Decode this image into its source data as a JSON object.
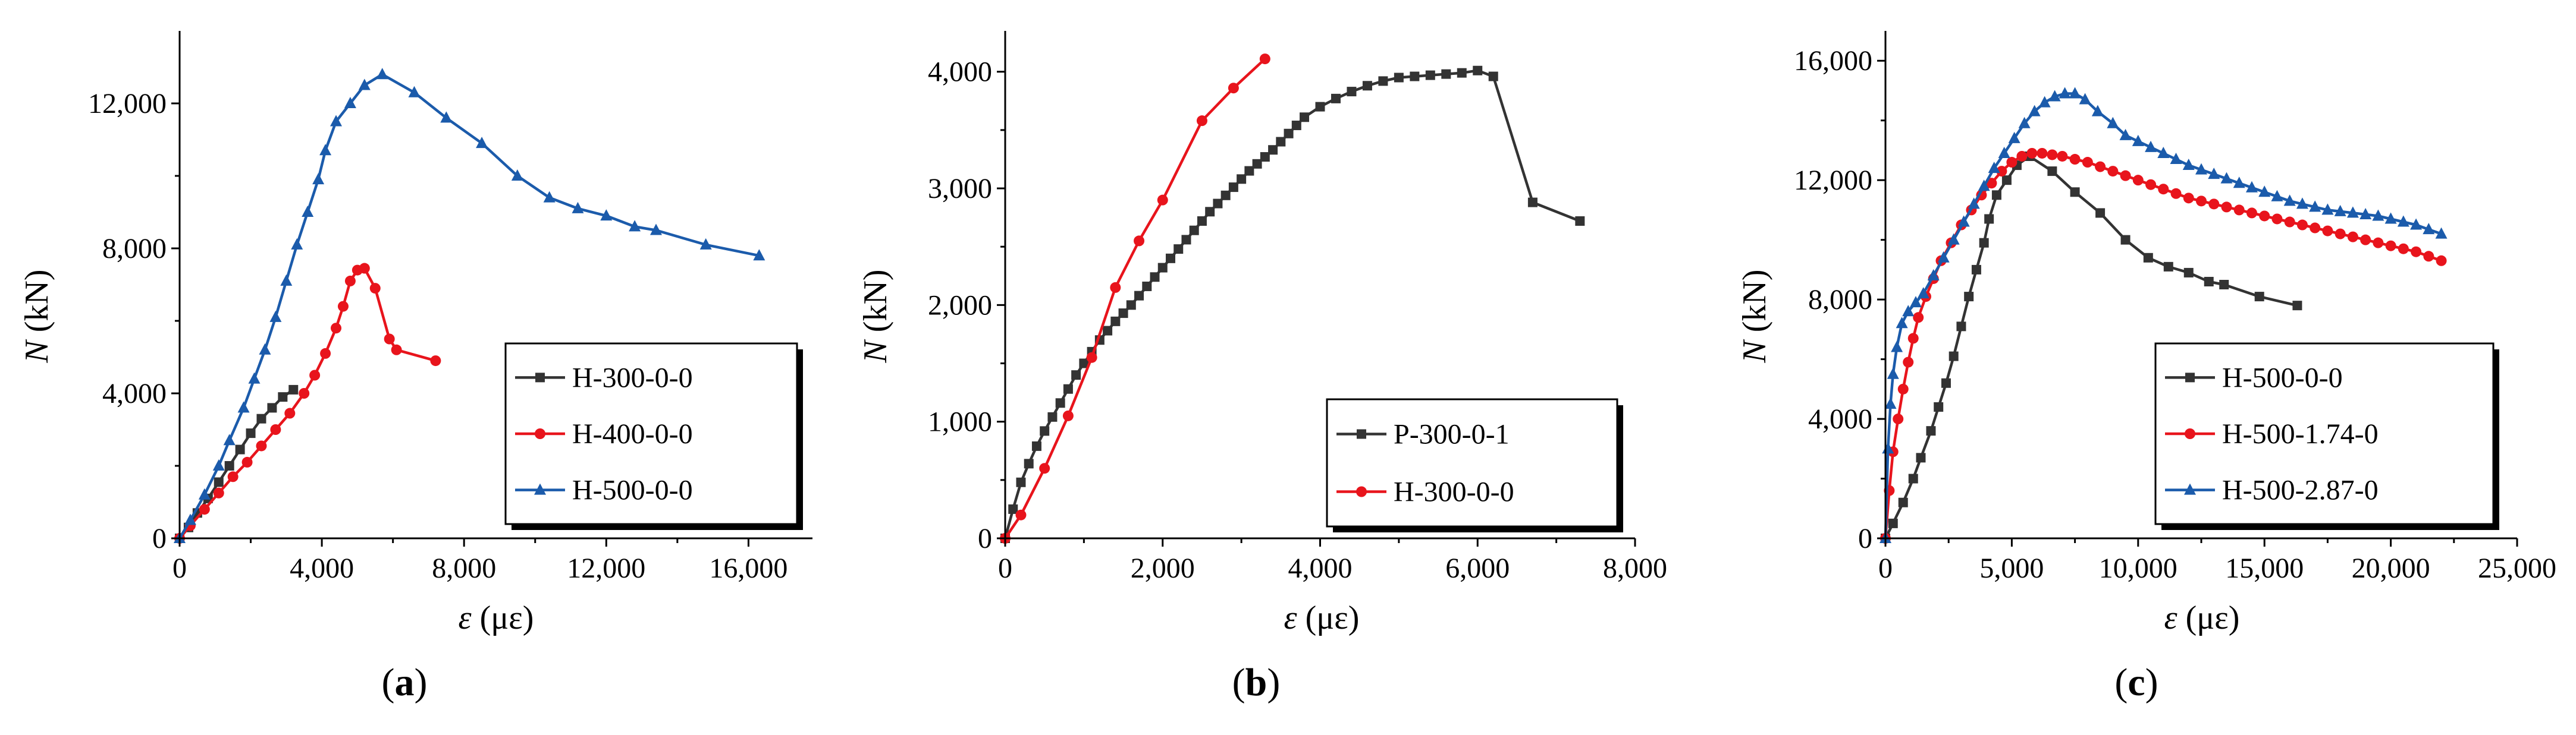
{
  "chart_data": [
    {
      "type": "line",
      "panel_label": "a",
      "xlabel": "ε (με)",
      "ylabel": "N (kN)",
      "xlim": [
        0,
        17800
      ],
      "ylim": [
        0,
        14000
      ],
      "xticks": [
        0,
        4000,
        8000,
        12000,
        16000
      ],
      "yticks": [
        0,
        4000,
        8000,
        12000
      ],
      "xtick_labels": [
        "0",
        "4,000",
        "8,000",
        "12,000",
        "16,000"
      ],
      "ytick_labels": [
        "0",
        "4,000",
        "8,000",
        "12,000"
      ],
      "legend_position": "bottom-right",
      "series": [
        {
          "name": "H-300-0-0",
          "color": "#333333",
          "marker": "square",
          "x": [
            0,
            250,
            500,
            800,
            1100,
            1400,
            1700,
            2000,
            2300,
            2600,
            2900,
            3200
          ],
          "y": [
            0,
            300,
            700,
            1100,
            1550,
            2000,
            2450,
            2900,
            3300,
            3600,
            3900,
            4100
          ]
        },
        {
          "name": "H-400-0-0",
          "color": "#e8141c",
          "marker": "circle",
          "x": [
            0,
            300,
            700,
            1100,
            1500,
            1900,
            2300,
            2700,
            3100,
            3500,
            3800,
            4100,
            4400,
            4600,
            4800,
            5000,
            5200,
            5500,
            5900,
            6100,
            7200
          ],
          "y": [
            0,
            350,
            800,
            1250,
            1700,
            2100,
            2550,
            3000,
            3450,
            4000,
            4500,
            5100,
            5800,
            6400,
            7100,
            7400,
            7450,
            6900,
            5500,
            5200,
            4900
          ]
        },
        {
          "name": "H-500-0-0",
          "color": "#1b5bab",
          "marker": "triangle",
          "x": [
            0,
            300,
            700,
            1100,
            1400,
            1800,
            2100,
            2400,
            2700,
            3000,
            3300,
            3600,
            3900,
            4100,
            4400,
            4800,
            5200,
            5700,
            6600,
            7500,
            8500,
            9500,
            10400,
            11200,
            12000,
            12800,
            13400,
            14800,
            16300
          ],
          "y": [
            0,
            500,
            1200,
            2000,
            2700,
            3600,
            4400,
            5200,
            6100,
            7100,
            8100,
            9000,
            9900,
            10700,
            11500,
            12000,
            12500,
            12800,
            12300,
            11600,
            10900,
            10000,
            9400,
            9100,
            8900,
            8600,
            8500,
            8100,
            7800
          ]
        }
      ]
    },
    {
      "type": "line",
      "panel_label": "b",
      "xlabel": "ε (με)",
      "ylabel": "N (kN)",
      "xlim": [
        0,
        8000
      ],
      "ylim": [
        0,
        4350
      ],
      "xticks": [
        0,
        2000,
        4000,
        6000,
        8000
      ],
      "yticks": [
        0,
        1000,
        2000,
        3000,
        4000
      ],
      "xtick_labels": [
        "0",
        "2,000",
        "4,000",
        "6,000",
        "8,000"
      ],
      "ytick_labels": [
        "0",
        "1,000",
        "2,000",
        "3,000",
        "4,000"
      ],
      "legend_position": "bottom-right",
      "series": [
        {
          "name": "P-300-0-1",
          "color": "#333333",
          "marker": "square",
          "x": [
            0,
            100,
            200,
            300,
            400,
            500,
            600,
            700,
            800,
            900,
            1000,
            1100,
            1200,
            1300,
            1400,
            1500,
            1600,
            1700,
            1800,
            1900,
            2000,
            2100,
            2200,
            2300,
            2400,
            2500,
            2600,
            2700,
            2800,
            2900,
            3000,
            3100,
            3200,
            3300,
            3400,
            3500,
            3600,
            3700,
            3800,
            4000,
            4200,
            4400,
            4600,
            4800,
            5000,
            5200,
            5400,
            5600,
            5800,
            6000,
            6200,
            6700,
            7300
          ],
          "y": [
            0,
            250,
            480,
            640,
            790,
            920,
            1040,
            1160,
            1280,
            1400,
            1500,
            1600,
            1700,
            1780,
            1860,
            1930,
            2000,
            2080,
            2160,
            2240,
            2320,
            2400,
            2480,
            2560,
            2640,
            2720,
            2800,
            2870,
            2940,
            3010,
            3080,
            3150,
            3210,
            3270,
            3330,
            3400,
            3470,
            3540,
            3610,
            3700,
            3770,
            3830,
            3880,
            3920,
            3950,
            3960,
            3970,
            3980,
            3990,
            4010,
            3960,
            2880,
            2720
          ]
        },
        {
          "name": "H-300-0-0",
          "color": "#e8141c",
          "marker": "circle",
          "x": [
            0,
            200,
            500,
            800,
            1100,
            1400,
            1700,
            2000,
            2500,
            2900,
            3300
          ],
          "y": [
            0,
            200,
            600,
            1050,
            1550,
            2150,
            2550,
            2900,
            3580,
            3860,
            4110
          ]
        }
      ]
    },
    {
      "type": "line",
      "panel_label": "c",
      "xlabel": "ε (με)",
      "ylabel": "N (kN)",
      "xlim": [
        0,
        25000
      ],
      "ylim": [
        0,
        17000
      ],
      "xticks": [
        0,
        5000,
        10000,
        15000,
        20000,
        25000
      ],
      "yticks": [
        0,
        4000,
        8000,
        12000,
        16000
      ],
      "xtick_labels": [
        "0",
        "5,000",
        "10,000",
        "15,000",
        "20,000",
        "25,000"
      ],
      "ytick_labels": [
        "0",
        "4,000",
        "8,000",
        "12,000",
        "16,000"
      ],
      "legend_position": "bottom-right",
      "series": [
        {
          "name": "H-500-0-0",
          "color": "#333333",
          "marker": "square",
          "x": [
            0,
            300,
            700,
            1100,
            1400,
            1800,
            2100,
            2400,
            2700,
            3000,
            3300,
            3600,
            3900,
            4100,
            4400,
            4800,
            5200,
            5700,
            6600,
            7500,
            8500,
            9500,
            10400,
            11200,
            12000,
            12800,
            13400,
            14800,
            16300
          ],
          "y": [
            0,
            500,
            1200,
            2000,
            2700,
            3600,
            4400,
            5200,
            6100,
            7100,
            8100,
            9000,
            9900,
            10700,
            11500,
            12000,
            12500,
            12800,
            12300,
            11600,
            10900,
            10000,
            9400,
            9100,
            8900,
            8600,
            8500,
            8100,
            7800
          ]
        },
        {
          "name": "H-500-1.74-0",
          "color": "#e8141c",
          "marker": "circle",
          "x": [
            0,
            150,
            300,
            500,
            700,
            900,
            1100,
            1300,
            1600,
            1900,
            2200,
            2600,
            3000,
            3400,
            3800,
            4200,
            4600,
            5000,
            5400,
            5800,
            6200,
            6600,
            7000,
            7500,
            8000,
            8500,
            9000,
            9500,
            10000,
            10500,
            11000,
            11500,
            12000,
            12500,
            13000,
            13500,
            14000,
            14500,
            15000,
            15500,
            16000,
            16500,
            17000,
            17500,
            18000,
            18500,
            19000,
            19500,
            20000,
            20500,
            21000,
            21500,
            22000
          ],
          "y": [
            0,
            1600,
            2900,
            4000,
            5000,
            5900,
            6700,
            7400,
            8100,
            8700,
            9300,
            9900,
            10500,
            11000,
            11500,
            11900,
            12300,
            12600,
            12800,
            12900,
            12900,
            12850,
            12800,
            12700,
            12600,
            12450,
            12300,
            12150,
            12000,
            11850,
            11700,
            11550,
            11400,
            11300,
            11200,
            11100,
            11000,
            10900,
            10800,
            10700,
            10600,
            10500,
            10400,
            10300,
            10200,
            10100,
            10000,
            9900,
            9800,
            9700,
            9600,
            9450,
            9300
          ]
        },
        {
          "name": "H-500-2.87-0",
          "color": "#1b5bab",
          "marker": "triangle",
          "x": [
            0,
            100,
            200,
            300,
            450,
            650,
            900,
            1200,
            1500,
            1900,
            2300,
            2700,
            3100,
            3500,
            3900,
            4300,
            4700,
            5100,
            5500,
            5900,
            6300,
            6700,
            7100,
            7500,
            7900,
            8400,
            9000,
            9500,
            10000,
            10500,
            11000,
            11500,
            12000,
            12500,
            13000,
            13500,
            14000,
            14500,
            15000,
            15500,
            16000,
            16500,
            17000,
            17500,
            18000,
            18500,
            19000,
            19500,
            20000,
            20500,
            21000,
            21500,
            22000
          ],
          "y": [
            0,
            3000,
            4500,
            5500,
            6400,
            7200,
            7600,
            7900,
            8200,
            8800,
            9400,
            10000,
            10600,
            11200,
            11800,
            12400,
            12900,
            13400,
            13900,
            14300,
            14600,
            14800,
            14900,
            14900,
            14700,
            14300,
            13900,
            13500,
            13300,
            13100,
            12900,
            12700,
            12500,
            12350,
            12200,
            12050,
            11900,
            11750,
            11600,
            11450,
            11300,
            11200,
            11100,
            11000,
            10950,
            10900,
            10850,
            10800,
            10700,
            10600,
            10500,
            10350,
            10200
          ]
        }
      ]
    }
  ]
}
